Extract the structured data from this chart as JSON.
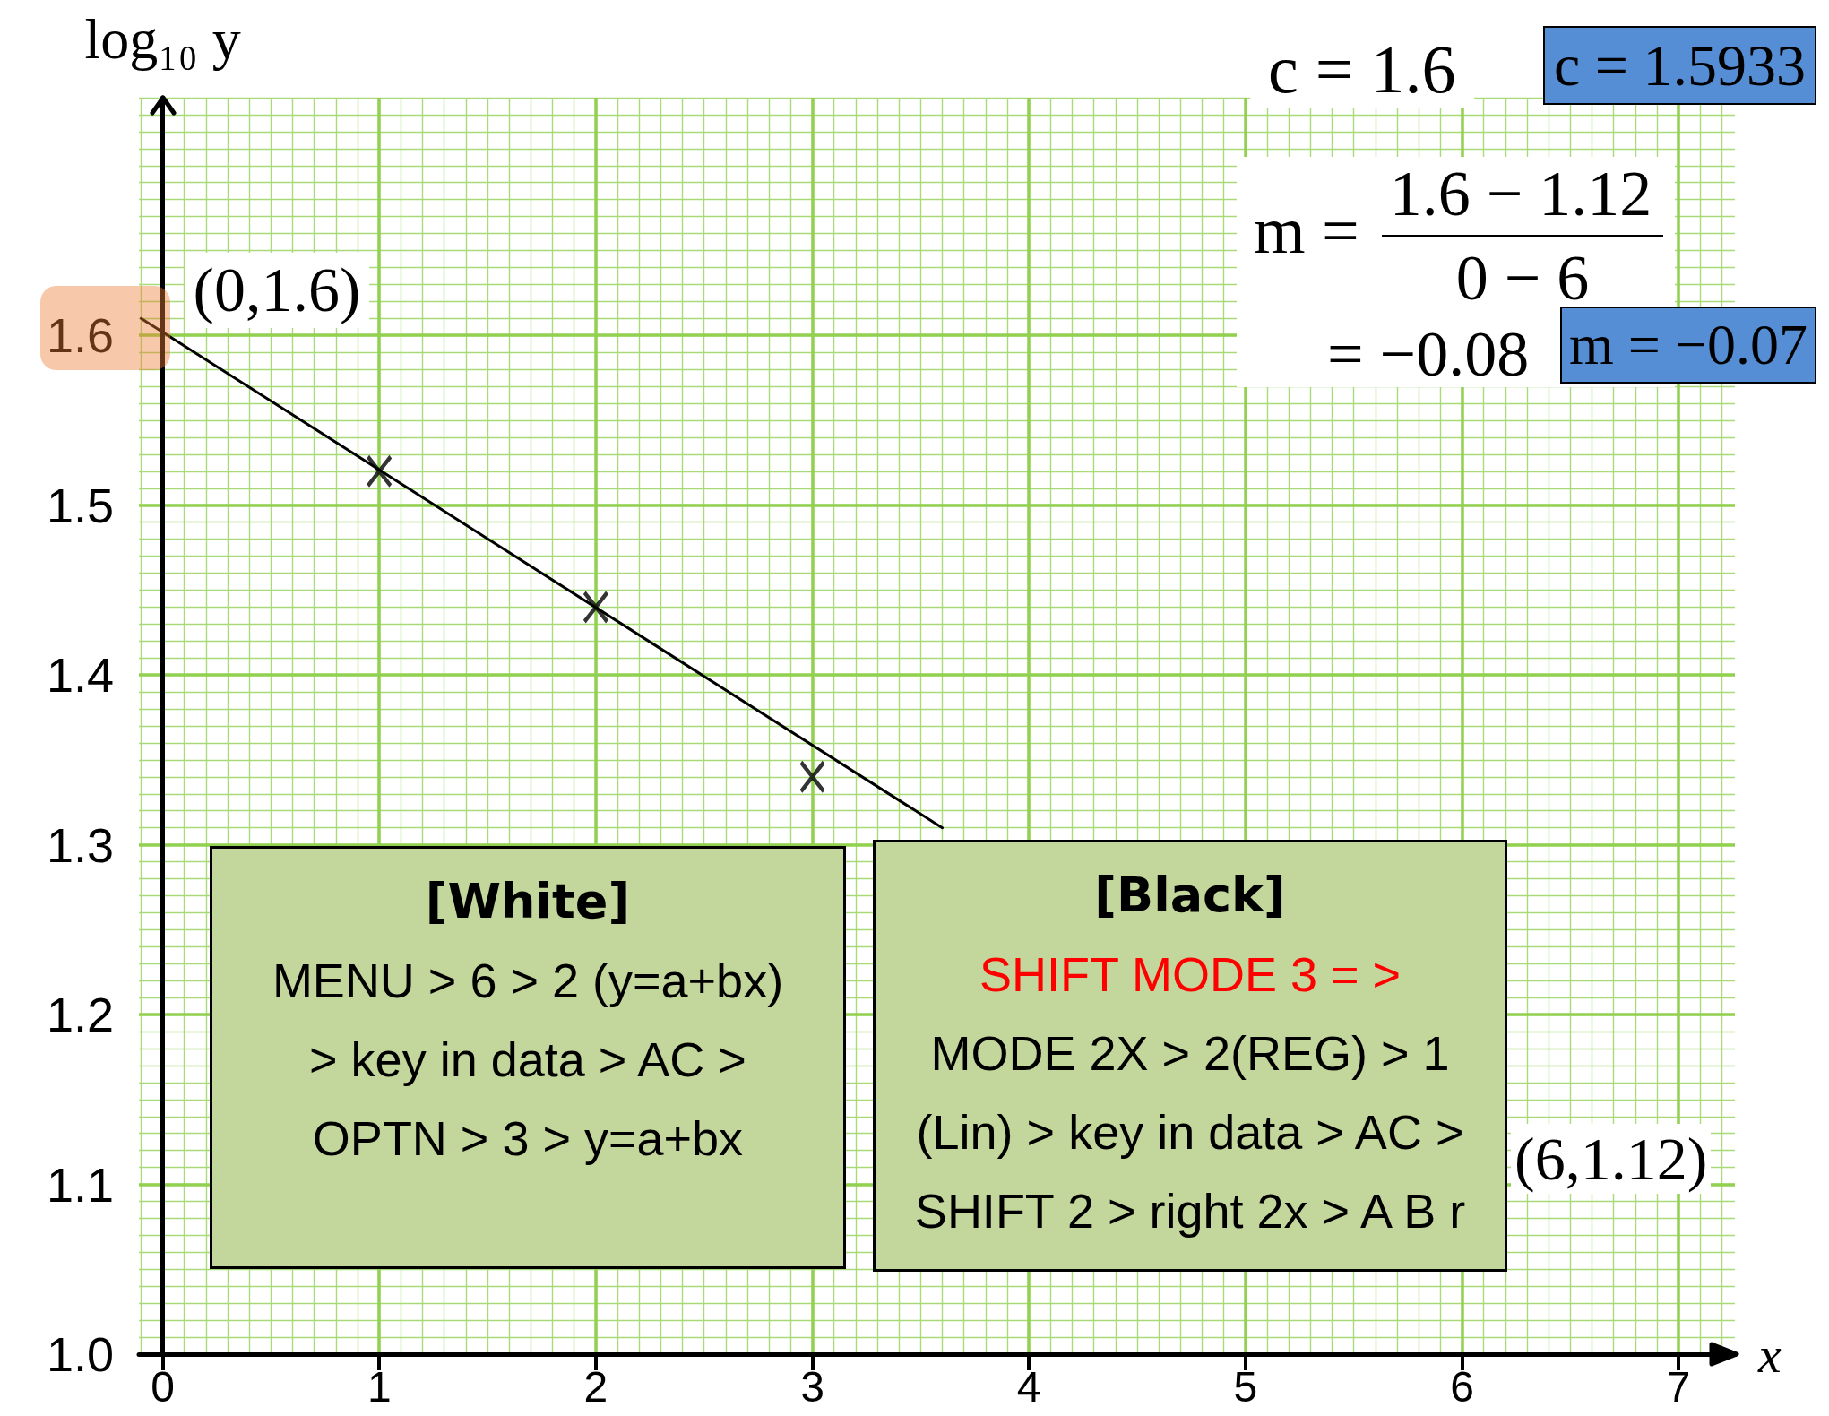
{
  "chart_data": {
    "type": "scatter",
    "xlabel": "x",
    "ylabel": "log₁₀ y",
    "xlim": [
      -0.11,
      7.26
    ],
    "ylim": [
      1.0,
      1.74
    ],
    "xticks": [
      0,
      1,
      2,
      3,
      4,
      5,
      6,
      7
    ],
    "yticks": [
      {
        "value": 1.0,
        "label": "1.0"
      },
      1.1,
      1.2,
      1.3,
      1.4,
      1.5,
      1.6
    ],
    "grid": true,
    "series": [
      {
        "type": "scatter",
        "x": [
          1,
          2,
          3
        ],
        "values": [
          1.52,
          1.44,
          1.34
        ],
        "color": "#000000",
        "marker": "cross"
      },
      {
        "type": "line",
        "x": [
          -0.1,
          3.6
        ],
        "values": [
          1.61,
          1.31
        ],
        "color": "#000000",
        "marker": "none"
      }
    ],
    "annotations": [
      {
        "text": "(0,1.6)",
        "x": 0,
        "y": 1.6
      },
      "(6,1.12)",
      "c = 1.6",
      "c = 1.5933",
      "m =",
      "1.6 − 1.12",
      "0 − 6",
      "= −0.08",
      "m = −0.07",
      "[White]\nMENU > 6 > 2 (y=a+bx)\n> key in data > AC >\nOPTN > 3 > y=a+bx",
      "[Black]\nSHIFT MODE 3 = >\nMODE 2X > 2(REG) > 1\n(Lin) > key in data > AC >\nSHIFT 2 > right 2x > A B r"
    ]
  }
}
